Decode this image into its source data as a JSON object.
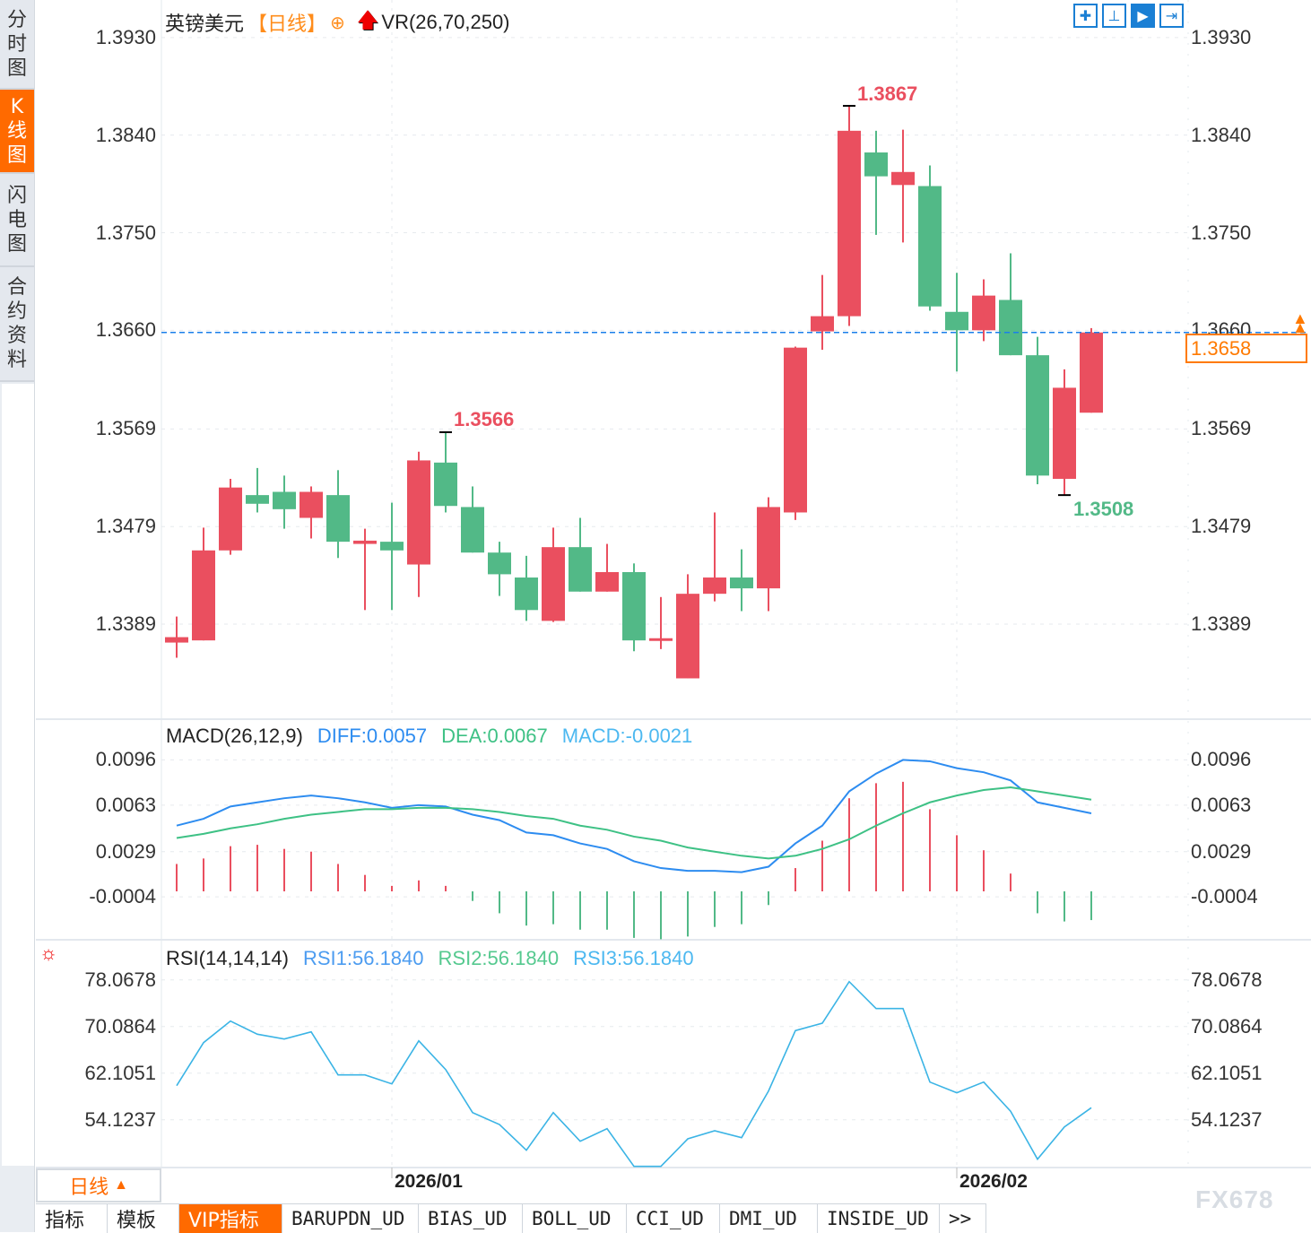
{
  "sidebar": {
    "items": [
      {
        "label": "分时图",
        "chars": [
          "分",
          "时",
          "图"
        ]
      },
      {
        "label": "K线图",
        "chars": [
          "K",
          "线",
          "图"
        ],
        "active": true
      },
      {
        "label": "闪电图",
        "chars": [
          "闪",
          "电",
          "图"
        ]
      },
      {
        "label": "合约资料",
        "chars": [
          "合",
          "约",
          "资",
          "料"
        ]
      }
    ]
  },
  "header": {
    "symbol": "英镑美元",
    "period": "【日线】",
    "indicator": "VR(26,70,250)",
    "icons": [
      "crosshair-add-icon",
      "arrow-up-red-icon"
    ]
  },
  "toolbar": {
    "icons": [
      "crosshair-icon",
      "zoom-range-icon",
      "play-forward-icon",
      "jump-end-icon"
    ]
  },
  "colors": {
    "up": "#ea4f5f",
    "down": "#52b987",
    "diff": "#2d8cf0",
    "dea": "#3ec185",
    "rsi": "#3bb4e5",
    "accent": "#ff6a00",
    "price_line": "#1a7fea"
  },
  "chart_data": [
    {
      "type": "candlestick",
      "title": "英镑美元",
      "yticks": [
        "1.3930",
        "1.3840",
        "1.3750",
        "1.3660",
        "1.3569",
        "1.3479",
        "1.3389"
      ],
      "x_labels": [
        "2026/01",
        "2026/02"
      ],
      "high_label": "1.3867",
      "low_label": "1.3508",
      "last_price": "1.3658",
      "ohlc": [
        [
          1.3372,
          1.3396,
          1.3358,
          1.3377
        ],
        [
          1.3374,
          1.3478,
          1.3374,
          1.3457
        ],
        [
          1.3457,
          1.3523,
          1.3453,
          1.3515
        ],
        [
          1.3508,
          1.3533,
          1.3492,
          1.35
        ],
        [
          1.3511,
          1.3526,
          1.3477,
          1.3495
        ],
        [
          1.3487,
          1.3516,
          1.3468,
          1.3511
        ],
        [
          1.3508,
          1.3531,
          1.345,
          1.3465
        ],
        [
          1.3463,
          1.3477,
          1.3402,
          1.3466
        ],
        [
          1.3465,
          1.3501,
          1.3402,
          1.3457
        ],
        [
          1.3444,
          1.3548,
          1.3414,
          1.354
        ],
        [
          1.3538,
          1.3566,
          1.3492,
          1.3498
        ],
        [
          1.3497,
          1.3516,
          1.3455,
          1.3455
        ],
        [
          1.3455,
          1.3465,
          1.3415,
          1.3435
        ],
        [
          1.3432,
          1.3452,
          1.3392,
          1.3402
        ],
        [
          1.3392,
          1.3478,
          1.3391,
          1.346
        ],
        [
          1.346,
          1.3487,
          1.3419,
          1.3419
        ],
        [
          1.3419,
          1.3463,
          1.3419,
          1.3437
        ],
        [
          1.3437,
          1.3445,
          1.3364,
          1.3374
        ],
        [
          1.3374,
          1.3414,
          1.3366,
          1.3376
        ],
        [
          1.3339,
          1.3435,
          1.3339,
          1.3417
        ],
        [
          1.3417,
          1.3492,
          1.341,
          1.3432
        ],
        [
          1.3432,
          1.3458,
          1.3401,
          1.3422
        ],
        [
          1.3422,
          1.3506,
          1.3401,
          1.3497
        ],
        [
          1.3492,
          1.3645,
          1.3485,
          1.3644
        ],
        [
          1.3659,
          1.3711,
          1.3642,
          1.3673
        ],
        [
          1.3673,
          1.3867,
          1.3664,
          1.3844
        ],
        [
          1.3824,
          1.3844,
          1.3748,
          1.3802
        ],
        [
          1.3794,
          1.3845,
          1.3741,
          1.3806
        ],
        [
          1.3793,
          1.3812,
          1.3678,
          1.3682
        ],
        [
          1.3677,
          1.3713,
          1.3622,
          1.366
        ],
        [
          1.366,
          1.3707,
          1.365,
          1.3692
        ],
        [
          1.3688,
          1.3731,
          1.3637,
          1.3637
        ],
        [
          1.3637,
          1.3654,
          1.3518,
          1.3526
        ],
        [
          1.3523,
          1.3624,
          1.3508,
          1.3607
        ],
        [
          1.3584,
          1.3662,
          1.3584,
          1.3658
        ]
      ]
    },
    {
      "type": "macd",
      "title": "MACD(26,12,9)",
      "legend": {
        "diff": "DIFF:0.0057",
        "dea": "DEA:0.0067",
        "macd": "MACD:-0.0021"
      },
      "yticks": [
        "0.0096",
        "0.0063",
        "0.0029",
        "-0.0004"
      ],
      "diff": [
        0.0048,
        0.0053,
        0.0062,
        0.0065,
        0.0068,
        0.007,
        0.0068,
        0.0065,
        0.0061,
        0.0063,
        0.0062,
        0.0056,
        0.0052,
        0.0043,
        0.0041,
        0.0035,
        0.0031,
        0.0022,
        0.0017,
        0.0015,
        0.0015,
        0.0014,
        0.0018,
        0.0035,
        0.0048,
        0.0073,
        0.0086,
        0.0096,
        0.0095,
        0.009,
        0.0087,
        0.0081,
        0.0065,
        0.0061,
        0.0057
      ],
      "dea": [
        0.0039,
        0.0042,
        0.0046,
        0.0049,
        0.0053,
        0.0056,
        0.0058,
        0.006,
        0.006,
        0.0061,
        0.0061,
        0.006,
        0.0058,
        0.0055,
        0.0053,
        0.0048,
        0.0045,
        0.004,
        0.0037,
        0.0032,
        0.0029,
        0.0026,
        0.0024,
        0.0026,
        0.0031,
        0.0038,
        0.0048,
        0.0057,
        0.0065,
        0.007,
        0.0074,
        0.0076,
        0.0073,
        0.007,
        0.0067
      ],
      "macd": [
        0.002,
        0.0024,
        0.0033,
        0.0034,
        0.0031,
        0.0029,
        0.002,
        0.0012,
        0.0004,
        0.0008,
        0.0004,
        -0.0007,
        -0.0016,
        -0.0025,
        -0.0024,
        -0.0028,
        -0.0028,
        -0.0034,
        -0.0035,
        -0.0033,
        -0.0026,
        -0.0024,
        -0.001,
        0.0017,
        0.0037,
        0.0068,
        0.0079,
        0.008,
        0.006,
        0.0041,
        0.003,
        0.0013,
        -0.0016,
        -0.0022,
        -0.0021
      ]
    },
    {
      "type": "line",
      "title": "RSI(14,14,14)",
      "legend": {
        "rsi1": "RSI1:56.1840",
        "rsi2": "RSI2:56.1840",
        "rsi3": "RSI3:56.1840"
      },
      "yticks": [
        "78.0678",
        "70.0864",
        "62.1051",
        "54.1237"
      ],
      "rsi": [
        59.95,
        67.32,
        71.01,
        68.76,
        67.94,
        69.17,
        61.8,
        61.8,
        60.26,
        67.63,
        62.72,
        55.35,
        53.31,
        48.9,
        55.35,
        50.44,
        52.59,
        46.14,
        46.14,
        50.85,
        52.24,
        51.05,
        59.03,
        69.38,
        70.65,
        77.76,
        73.16,
        73.16,
        60.57,
        58.73,
        60.57,
        55.57,
        47.37,
        52.89,
        56.18
      ]
    }
  ],
  "period_button": {
    "label": "日线",
    "icon": "triangle-up-icon"
  },
  "bottom_tabs": [
    "指标",
    "模板",
    "VIP指标",
    "BARUPDN_UD",
    "BIAS_UD",
    "BOLL_UD",
    "CCI_UD",
    "DMI_UD",
    "INSIDE_UD",
    ">>"
  ],
  "watermark": "FX678"
}
